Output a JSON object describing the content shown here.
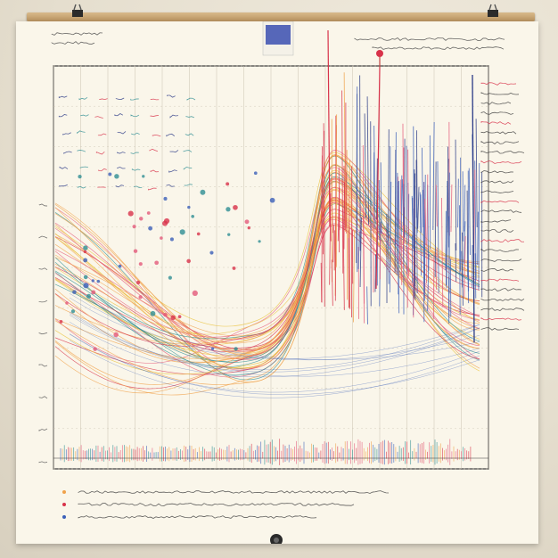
{
  "scene": {
    "description_none": "",
    "colors": {
      "paper": "#faf6ea",
      "wall": "#e6dfcf",
      "grid": "#c9c2b0",
      "axis": "#3a3a3a",
      "orange": "#f0a24a",
      "red": "#d8324a",
      "pink": "#e45a7a",
      "blue": "#3b5fb8",
      "navy": "#2a3a86",
      "teal": "#2f8f93",
      "yellow": "#e9c13a"
    },
    "icons": [
      "binder-clip-icon",
      "binder-clip-icon",
      "pin-marker-icon",
      "round-magnet-icon"
    ]
  }
}
